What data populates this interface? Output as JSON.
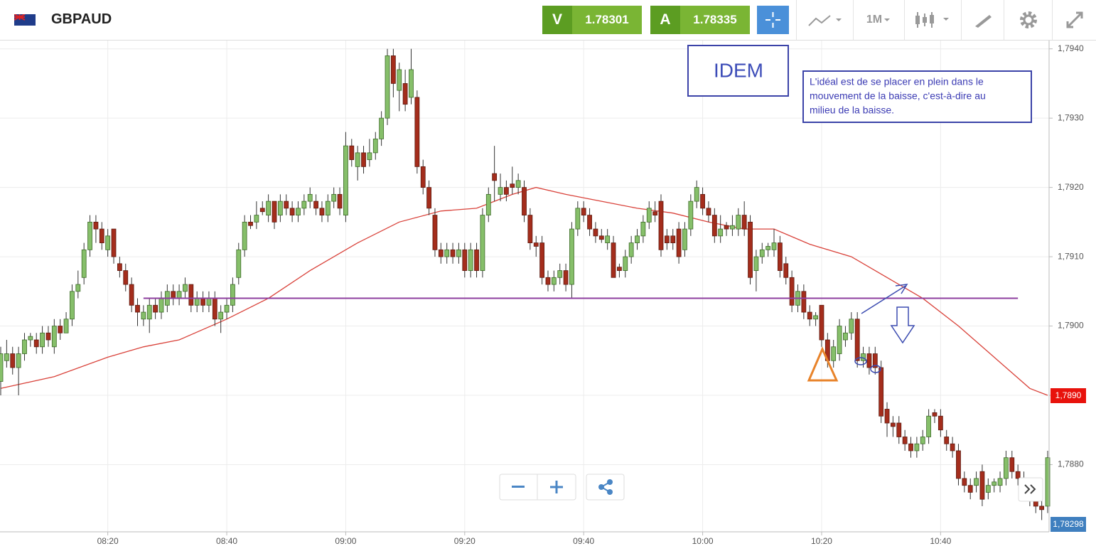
{
  "toolbar": {
    "symbol": "GBPAUD",
    "bid_key": "V",
    "bid": "1.78301",
    "ask_key": "A",
    "ask": "1.78335",
    "period": "1M"
  },
  "chart_data": {
    "type": "candlestick",
    "up_color": "#86bf6a",
    "down_color": "#a42d1c",
    "x": [
      "08:02",
      "08:03",
      "08:04",
      "08:05",
      "08:06",
      "08:07",
      "08:08",
      "08:09",
      "08:10",
      "08:11",
      "08:12",
      "08:13",
      "08:14",
      "08:15",
      "08:16",
      "08:17",
      "08:18",
      "08:19",
      "08:20",
      "08:21",
      "08:22",
      "08:23",
      "08:24",
      "08:25",
      "08:26",
      "08:27",
      "08:28",
      "08:29",
      "08:30",
      "08:31",
      "08:32",
      "08:33",
      "08:34",
      "08:35",
      "08:36",
      "08:37",
      "08:38",
      "08:39",
      "08:40",
      "08:41",
      "08:42",
      "08:43",
      "08:44",
      "08:45",
      "08:46",
      "08:47",
      "08:48",
      "08:49",
      "08:50",
      "08:51",
      "08:52",
      "08:53",
      "08:54",
      "08:55",
      "08:56",
      "08:57",
      "08:58",
      "08:59",
      "09:00",
      "09:01",
      "09:02",
      "09:03",
      "09:04",
      "09:05",
      "09:06",
      "09:07",
      "09:08",
      "09:09",
      "09:10",
      "09:11",
      "09:12",
      "09:13",
      "09:14",
      "09:15",
      "09:16",
      "09:17",
      "09:18",
      "09:19",
      "09:20",
      "09:21",
      "09:22",
      "09:23",
      "09:24",
      "09:25",
      "09:26",
      "09:27",
      "09:28",
      "09:29",
      "09:30",
      "09:31",
      "09:32",
      "09:33",
      "09:34",
      "09:35",
      "09:36",
      "09:37",
      "09:38",
      "09:39",
      "09:40",
      "09:41",
      "09:42",
      "09:43",
      "09:44",
      "09:45",
      "09:46",
      "09:47",
      "09:48",
      "09:49",
      "09:50",
      "09:51",
      "09:52",
      "09:53",
      "09:54",
      "09:55",
      "09:56",
      "09:57",
      "09:58",
      "09:59",
      "10:00",
      "10:01",
      "10:02",
      "10:03",
      "10:04",
      "10:05",
      "10:06",
      "10:07",
      "10:08",
      "10:09",
      "10:10",
      "10:11",
      "10:12",
      "10:13",
      "10:14",
      "10:15",
      "10:16",
      "10:17",
      "10:18",
      "10:19",
      "10:20",
      "10:21",
      "10:22",
      "10:23",
      "10:24",
      "10:25",
      "10:26",
      "10:27",
      "10:28",
      "10:29",
      "10:30",
      "10:31",
      "10:32",
      "10:33",
      "10:34",
      "10:35",
      "10:36",
      "10:37",
      "10:38",
      "10:39",
      "10:40",
      "10:41",
      "10:42",
      "10:43",
      "10:44",
      "10:45",
      "10:46",
      "10:47",
      "10:48",
      "10:49",
      "10:50",
      "10:51",
      "10:52",
      "10:53",
      "10:54",
      "10:55",
      "10:56",
      "10:57",
      "10:58"
    ],
    "open": [
      1.7892,
      1.7895,
      1.7896,
      1.7894,
      1.7896,
      1.7898,
      1.7898,
      1.7897,
      1.7899,
      1.7897,
      1.79,
      1.7899,
      1.7901,
      1.7905,
      1.7907,
      1.7911,
      1.7915,
      1.7914,
      1.7911,
      1.7914,
      1.7909,
      1.7908,
      1.7906,
      1.7903,
      1.7901,
      1.7901,
      1.7903,
      1.7902,
      1.7903,
      1.7905,
      1.7904,
      1.7905,
      1.7906,
      1.7903,
      1.7904,
      1.7903,
      1.7904,
      1.7901,
      1.7902,
      1.7903,
      1.7907,
      1.7911,
      1.7915,
      1.7915,
      1.7917,
      1.7916,
      1.7918,
      1.7916,
      1.7918,
      1.7917,
      1.7916,
      1.7917,
      1.7918,
      1.7918,
      1.7917,
      1.7916,
      1.7918,
      1.7919,
      1.7916,
      1.7926,
      1.7923,
      1.7925,
      1.7924,
      1.7925,
      1.7927,
      1.793,
      1.7939,
      1.7934,
      1.7935,
      1.7933,
      1.7933,
      1.7923,
      1.792,
      1.7916,
      1.7911,
      1.791,
      1.7911,
      1.791,
      1.7911,
      1.7908,
      1.7911,
      1.7908,
      1.7916,
      1.7922,
      1.7919,
      1.792,
      1.79205,
      1.792,
      1.792,
      1.7916,
      1.7912,
      1.7912,
      1.7907,
      1.7906,
      1.7907,
      1.7908,
      1.7906,
      1.7914,
      1.7917,
      1.7916,
      1.7914,
      1.7913,
      1.7912,
      1.7912,
      1.79085,
      1.7908,
      1.791,
      1.7912,
      1.7913,
      1.7915,
      1.79165,
      1.7918,
      1.7913,
      1.7913,
      1.7914,
      1.7911,
      1.7914,
      1.7918,
      1.7919,
      1.7917,
      1.7916,
      1.7913,
      1.79145,
      1.7914,
      1.7914,
      1.7916,
      1.7915,
      1.7908,
      1.791,
      1.7911,
      1.7911,
      1.7912,
      1.7909,
      1.7907,
      1.7903,
      1.7905,
      1.7902,
      1.7901,
      1.7903,
      1.7898,
      1.7895,
      1.7896,
      1.7898,
      1.7899,
      1.7901,
      1.7895,
      1.7896,
      1.7896,
      1.7894,
      1.7888,
      1.7886,
      1.7886,
      1.7884,
      1.7883,
      1.7882,
      1.7883,
      1.7884,
      1.78875,
      1.7887,
      1.7884,
      1.7883,
      1.7882,
      1.7878,
      1.7877,
      1.7877,
      1.7879,
      1.7876,
      1.7877,
      1.7877,
      1.7878,
      1.7881,
      1.7879,
      1.7878,
      1.7877,
      1.7875,
      1.7874,
      1.7874
    ],
    "high": [
      1.7897,
      1.7898,
      1.7897,
      1.7897,
      1.7899,
      1.7899,
      1.7899,
      1.79,
      1.79,
      1.7901,
      1.7901,
      1.7902,
      1.7906,
      1.7908,
      1.7912,
      1.7916,
      1.7916,
      1.7915,
      1.7914,
      1.7914,
      1.791,
      1.7909,
      1.7907,
      1.7904,
      1.7903,
      1.7904,
      1.7904,
      1.7905,
      1.7906,
      1.7906,
      1.7906,
      1.7907,
      1.7906,
      1.7905,
      1.7905,
      1.7905,
      1.7905,
      1.7903,
      1.7904,
      1.7907,
      1.7912,
      1.7916,
      1.7916,
      1.7918,
      1.7918,
      1.7919,
      1.7918,
      1.7919,
      1.7919,
      1.7918,
      1.7918,
      1.7919,
      1.792,
      1.7919,
      1.7918,
      1.7919,
      1.792,
      1.792,
      1.7928,
      1.7927,
      1.7926,
      1.7926,
      1.7927,
      1.7928,
      1.7931,
      1.794,
      1.794,
      1.7938,
      1.7937,
      1.794,
      1.7934,
      1.7924,
      1.7921,
      1.7917,
      1.7912,
      1.7912,
      1.7912,
      1.7912,
      1.7912,
      1.7912,
      1.7912,
      1.7917,
      1.792,
      1.7926,
      1.7922,
      1.7921,
      1.7923,
      1.7922,
      1.7921,
      1.7917,
      1.7913,
      1.7913,
      1.7908,
      1.7908,
      1.7909,
      1.7909,
      1.7915,
      1.7918,
      1.7918,
      1.7917,
      1.7915,
      1.7914,
      1.7914,
      1.7913,
      1.7909,
      1.7911,
      1.7913,
      1.7914,
      1.7916,
      1.7918,
      1.7918,
      1.7919,
      1.7914,
      1.7914,
      1.7915,
      1.7915,
      1.7919,
      1.7921,
      1.792,
      1.7918,
      1.7917,
      1.7916,
      1.7915,
      1.7916,
      1.7917,
      1.7918,
      1.7916,
      1.7911,
      1.7912,
      1.7912,
      1.7914,
      1.7913,
      1.791,
      1.7908,
      1.7906,
      1.7906,
      1.7903,
      1.7902,
      1.7903,
      1.7899,
      1.7898,
      1.7901,
      1.79,
      1.7902,
      1.7902,
      1.7897,
      1.7897,
      1.7897,
      1.7895,
      1.7889,
      1.7887,
      1.7887,
      1.7885,
      1.7884,
      1.7884,
      1.7885,
      1.7888,
      1.7888,
      1.7888,
      1.7885,
      1.7884,
      1.7883,
      1.7879,
      1.7878,
      1.7879,
      1.788,
      1.7878,
      1.7878,
      1.7879,
      1.7882,
      1.7882,
      1.788,
      1.7879,
      1.7878,
      1.7876,
      1.7875,
      1.7882
    ],
    "low": [
      1.789,
      1.7894,
      1.7893,
      1.789,
      1.7895,
      1.7897,
      1.7896,
      1.7896,
      1.7897,
      1.7896,
      1.7898,
      1.7899,
      1.79,
      1.7904,
      1.7906,
      1.791,
      1.7912,
      1.7911,
      1.791,
      1.7909,
      1.7907,
      1.7905,
      1.7902,
      1.79,
      1.79,
      1.7899,
      1.7901,
      1.7901,
      1.7902,
      1.7903,
      1.7903,
      1.7904,
      1.7902,
      1.7902,
      1.7902,
      1.7902,
      1.79,
      1.7899,
      1.7901,
      1.7902,
      1.7906,
      1.791,
      1.7914,
      1.7914,
      1.7916,
      1.7915,
      1.7914,
      1.7915,
      1.7916,
      1.7915,
      1.7915,
      1.7916,
      1.7917,
      1.7916,
      1.7915,
      1.7915,
      1.7917,
      1.7916,
      1.7915,
      1.7923,
      1.7921,
      1.7922,
      1.7923,
      1.7924,
      1.7926,
      1.7929,
      1.7933,
      1.7931,
      1.7931,
      1.7932,
      1.7922,
      1.7919,
      1.7916,
      1.791,
      1.7909,
      1.7909,
      1.7909,
      1.7909,
      1.7907,
      1.7907,
      1.7907,
      1.7907,
      1.7915,
      1.7918,
      1.7918,
      1.7918,
      1.7919,
      1.7919,
      1.7915,
      1.7911,
      1.791,
      1.7906,
      1.7905,
      1.7905,
      1.7906,
      1.7905,
      1.7904,
      1.7913,
      1.7915,
      1.7913,
      1.7912,
      1.7912,
      1.7911,
      1.7907,
      1.7907,
      1.7907,
      1.7909,
      1.7911,
      1.7912,
      1.7914,
      1.7915,
      1.791,
      1.7911,
      1.7911,
      1.7909,
      1.791,
      1.7913,
      1.7917,
      1.7916,
      1.7915,
      1.7912,
      1.7912,
      1.7913,
      1.7913,
      1.7913,
      1.7913,
      1.7906,
      1.7905,
      1.7909,
      1.791,
      1.791,
      1.7907,
      1.7906,
      1.7902,
      1.7902,
      1.7901,
      1.79,
      1.79,
      1.7897,
      1.7894,
      1.7894,
      1.7895,
      1.7897,
      1.7898,
      1.7894,
      1.7894,
      1.7893,
      1.7893,
      1.7886,
      1.7884,
      1.7884,
      1.7883,
      1.7882,
      1.7881,
      1.7881,
      1.7882,
      1.7883,
      1.7886,
      1.7884,
      1.7882,
      1.7881,
      1.7877,
      1.7876,
      1.7875,
      1.7876,
      1.7874,
      1.7875,
      1.7876,
      1.7876,
      1.7877,
      1.7878,
      1.7877,
      1.7876,
      1.7874,
      1.7873,
      1.7872,
      1.7873
    ],
    "close": [
      1.7896,
      1.7896,
      1.7894,
      1.7896,
      1.7898,
      1.78985,
      1.7897,
      1.7899,
      1.7898,
      1.79,
      1.7899,
      1.7901,
      1.7905,
      1.7906,
      1.7911,
      1.7915,
      1.7914,
      1.7912,
      1.7913,
      1.791,
      1.7908,
      1.7906,
      1.7903,
      1.7902,
      1.7902,
      1.7903,
      1.7902,
      1.7904,
      1.7905,
      1.7904,
      1.7905,
      1.7906,
      1.7903,
      1.7904,
      1.7903,
      1.7904,
      1.7901,
      1.7902,
      1.7903,
      1.7906,
      1.7911,
      1.7915,
      1.79145,
      1.7916,
      1.79165,
      1.7918,
      1.7915,
      1.7918,
      1.7917,
      1.7916,
      1.7917,
      1.7918,
      1.7919,
      1.7917,
      1.7916,
      1.7918,
      1.7919,
      1.7917,
      1.7926,
      1.7924,
      1.7925,
      1.7923,
      1.7925,
      1.7927,
      1.793,
      1.7939,
      1.7935,
      1.7937,
      1.7932,
      1.7937,
      1.7923,
      1.792,
      1.7917,
      1.7911,
      1.791,
      1.7911,
      1.791,
      1.7911,
      1.7908,
      1.7911,
      1.7908,
      1.7916,
      1.7919,
      1.7921,
      1.792,
      1.7919,
      1.792,
      1.7921,
      1.7916,
      1.7912,
      1.79115,
      1.7907,
      1.7906,
      1.7907,
      1.7908,
      1.7906,
      1.7914,
      1.7917,
      1.7916,
      1.7914,
      1.7913,
      1.79125,
      1.7913,
      1.7907,
      1.7908,
      1.791,
      1.7912,
      1.7913,
      1.7915,
      1.7917,
      1.7916,
      1.7911,
      1.7912,
      1.7912,
      1.791,
      1.7914,
      1.7918,
      1.792,
      1.7917,
      1.7916,
      1.7913,
      1.7914,
      1.7914,
      1.79145,
      1.7916,
      1.7914,
      1.7907,
      1.791,
      1.7911,
      1.79115,
      1.7912,
      1.7908,
      1.7907,
      1.7903,
      1.7905,
      1.7902,
      1.7901,
      1.79015,
      1.7898,
      1.7895,
      1.7897,
      1.79,
      1.7899,
      1.7901,
      1.7895,
      1.7896,
      1.7894,
      1.7894,
      1.7887,
      1.7886,
      1.78855,
      1.7884,
      1.7883,
      1.7882,
      1.7883,
      1.7884,
      1.7887,
      1.7887,
      1.7885,
      1.7883,
      1.7882,
      1.7878,
      1.7877,
      1.7876,
      1.7878,
      1.7875,
      1.7877,
      1.78775,
      1.7878,
      1.7881,
      1.7879,
      1.7878,
      1.7877,
      1.7875,
      1.7874,
      1.78735,
      1.7881
    ],
    "xlim": [
      "08:02",
      "10:58"
    ],
    "ylim": [
      1.78703,
      1.79412
    ],
    "xticks": [
      "08:20",
      "08:40",
      "09:00",
      "09:20",
      "09:40",
      "10:00",
      "10:20",
      "10:40"
    ],
    "yticks": [
      {
        "value": 1.794,
        "label": "1,7940"
      },
      {
        "value": 1.793,
        "label": "1,7930"
      },
      {
        "value": 1.792,
        "label": "1,7920"
      },
      {
        "value": 1.791,
        "label": "1,7910"
      },
      {
        "value": 1.79,
        "label": "1,7900"
      },
      {
        "value": 1.789,
        "label": "1,7890"
      },
      {
        "value": 1.788,
        "label": "1,7880"
      }
    ],
    "grid": true,
    "ma": {
      "color": "#d9423a",
      "x": [
        "08:02",
        "08:11",
        "08:20",
        "08:26",
        "08:32",
        "08:40",
        "08:47",
        "08:54",
        "09:02",
        "09:09",
        "09:16",
        "09:22",
        "09:28",
        "09:32",
        "09:37",
        "09:43",
        "09:49",
        "09:55",
        "10:01",
        "10:07",
        "10:12",
        "10:18",
        "10:25",
        "10:31",
        "10:37",
        "10:43",
        "10:49",
        "10:55",
        "10:58"
      ],
      "values": [
        1.7891,
        1.78927,
        1.78955,
        1.7897,
        1.7898,
        1.7901,
        1.7904,
        1.7908,
        1.7912,
        1.7915,
        1.79166,
        1.7917,
        1.7919,
        1.792,
        1.7919,
        1.7918,
        1.7917,
        1.79163,
        1.7915,
        1.7914,
        1.7914,
        1.79118,
        1.791,
        1.7907,
        1.7904,
        1.79,
        1.78955,
        1.7891,
        1.789
      ],
      "label": {
        "value": 1.789,
        "label": "1,7890"
      }
    },
    "hline": {
      "value": 1.7904,
      "from": "08:26",
      "to": "10:53",
      "color": "#8e3f9f"
    },
    "price_tag": "1,78298",
    "annotations": {
      "idem": "IDEM",
      "note": [
        "L'idéal est de se placer en plein dans le",
        "mouvement de la baisse, c'est-à-dire au",
        "milieu de la baisse."
      ]
    }
  }
}
